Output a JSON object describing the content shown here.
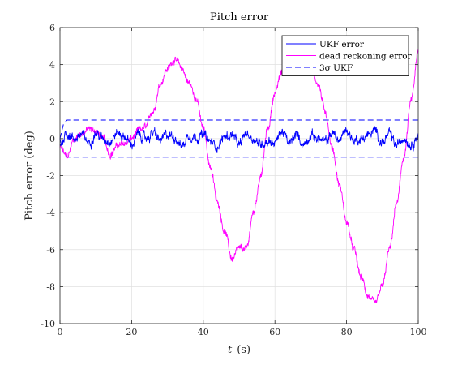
{
  "chart_data": {
    "type": "line",
    "title": "Pitch error",
    "xlabel_italic": "t",
    "xlabel_units": "(s)",
    "ylabel": "Pitch error (deg)",
    "xlim": [
      0,
      100
    ],
    "ylim": [
      -10,
      6
    ],
    "xticks": [
      0,
      20,
      40,
      60,
      80,
      100
    ],
    "yticks": [
      -10,
      -8,
      -6,
      -4,
      -2,
      0,
      2,
      4,
      6
    ],
    "grid": true,
    "legend_position": "top-right",
    "series": [
      {
        "name": "UKF error",
        "color": "#0000ff",
        "style": "solid",
        "x": [
          0,
          2,
          4,
          6,
          8,
          10,
          12,
          14,
          16,
          18,
          20,
          22,
          24,
          26,
          28,
          30,
          32,
          34,
          36,
          38,
          40,
          42,
          44,
          46,
          48,
          50,
          52,
          54,
          56,
          58,
          60,
          62,
          64,
          66,
          68,
          70,
          72,
          74,
          76,
          78,
          80,
          82,
          84,
          86,
          88,
          90,
          92,
          94,
          96,
          98,
          100
        ],
        "y": [
          0.1,
          0.3,
          0.0,
          0.2,
          -0.2,
          0.3,
          0.0,
          -0.1,
          0.3,
          0.1,
          -0.3,
          0.2,
          0.0,
          0.3,
          -0.1,
          0.2,
          0.1,
          -0.4,
          0.2,
          0.1,
          0.2,
          -0.2,
          -0.4,
          0.1,
          0.2,
          -0.4,
          0.3,
          0.0,
          -0.3,
          -0.1,
          -0.2,
          0.4,
          -0.3,
          0.2,
          -0.3,
          0.2,
          0.0,
          -0.2,
          0.3,
          -0.1,
          0.5,
          -0.1,
          0.0,
          0.2,
          0.4,
          -0.2,
          0.2,
          -0.4,
          0.1,
          -0.3,
          0.2
        ]
      },
      {
        "name": "dead reckoning error",
        "color": "#ff00ff",
        "style": "solid",
        "x": [
          0,
          2,
          4,
          6,
          8,
          10,
          12,
          14,
          16,
          18,
          20,
          22,
          24,
          26,
          28,
          30,
          32,
          34,
          36,
          38,
          40,
          42,
          44,
          46,
          48,
          50,
          52,
          54,
          56,
          58,
          60,
          62,
          64,
          66,
          68,
          70,
          72,
          74,
          76,
          78,
          80,
          82,
          84,
          86,
          88,
          90,
          92,
          94,
          96,
          98,
          100
        ],
        "y": [
          -0.5,
          -1.0,
          0.0,
          0.3,
          0.5,
          0.4,
          0.0,
          -0.8,
          -0.4,
          -0.3,
          0.0,
          0.4,
          0.6,
          1.5,
          3.0,
          3.8,
          4.3,
          3.8,
          3.0,
          2.2,
          0.5,
          -1.5,
          -3.5,
          -5.0,
          -6.5,
          -6.0,
          -6.0,
          -4.0,
          -2.0,
          0.5,
          2.5,
          3.6,
          4.1,
          4.2,
          4.0,
          3.9,
          3.0,
          1.5,
          -0.5,
          -2.5,
          -4.5,
          -6.0,
          -7.5,
          -8.5,
          -9.0,
          -8.0,
          -6.0,
          -3.5,
          -1.0,
          2.0,
          4.6
        ]
      },
      {
        "name": "3σ UKF",
        "color": "#0000ff",
        "style": "dashed",
        "x": [
          0,
          1,
          2,
          100
        ],
        "y": [
          0.0,
          0.8,
          1.0,
          1.0
        ],
        "mirror": true
      }
    ]
  }
}
